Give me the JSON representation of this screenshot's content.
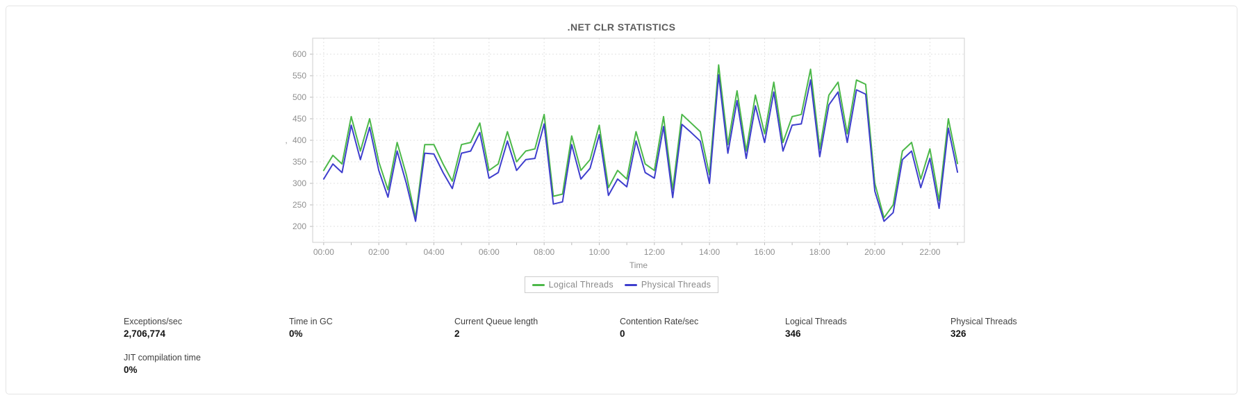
{
  "chart_data": {
    "type": "line",
    "title": ".NET CLR STATISTICS",
    "xlabel": "Time",
    "ylabel": ",",
    "grid": true,
    "legend_position": "bottom",
    "ylim": [
      163,
      637
    ],
    "y_ticks": [
      600,
      550,
      500,
      450,
      400,
      350,
      300,
      250,
      200
    ],
    "x_tick_labels": [
      "00:00",
      "02:00",
      "04:00",
      "06:00",
      "08:00",
      "10:00",
      "12:00",
      "14:00",
      "16:00",
      "18:00",
      "20:00",
      "22:00"
    ],
    "x_tick_hours": [
      0,
      2,
      4,
      6,
      8,
      10,
      12,
      14,
      16,
      18,
      20,
      22
    ],
    "x_minor_tick_step_hours": 1,
    "x_domain_hours": [
      -0.4,
      23.25
    ],
    "x_start_time": "00:00",
    "sample_interval_minutes": 20,
    "axis_color": "#cfcfcf",
    "grid_color": "#e2e2e2",
    "series": [
      {
        "name": "Logical Threads",
        "color": "#4cb849",
        "values": [
          330,
          365,
          345,
          455,
          375,
          450,
          350,
          285,
          395,
          320,
          220,
          390,
          390,
          345,
          305,
          390,
          395,
          440,
          330,
          345,
          420,
          350,
          375,
          380,
          460,
          270,
          275,
          410,
          330,
          355,
          435,
          290,
          330,
          310,
          420,
          345,
          330,
          455,
          285,
          460,
          440,
          420,
          320,
          575,
          390,
          515,
          375,
          505,
          415,
          535,
          395,
          455,
          460,
          565,
          380,
          505,
          535,
          415,
          540,
          530,
          300,
          220,
          250,
          375,
          395,
          310,
          380,
          260,
          450,
          346
        ]
      },
      {
        "name": "Physical Threads",
        "color": "#3e3ecd",
        "values": [
          310,
          345,
          325,
          435,
          355,
          430,
          330,
          268,
          375,
          300,
          212,
          370,
          368,
          325,
          288,
          370,
          375,
          418,
          312,
          325,
          398,
          330,
          355,
          358,
          438,
          252,
          257,
          390,
          310,
          335,
          413,
          272,
          310,
          292,
          398,
          325,
          312,
          432,
          267,
          437,
          418,
          398,
          300,
          552,
          370,
          492,
          358,
          480,
          395,
          512,
          375,
          435,
          438,
          540,
          362,
          482,
          512,
          395,
          517,
          507,
          282,
          212,
          232,
          355,
          375,
          290,
          358,
          242,
          428,
          326
        ]
      }
    ]
  },
  "stats": {
    "items": [
      {
        "label": "Exceptions/sec",
        "value": "2,706,774"
      },
      {
        "label": "Time in GC",
        "value": "0%"
      },
      {
        "label": "Current Queue length",
        "value": "2"
      },
      {
        "label": "Contention Rate/sec",
        "value": "0"
      },
      {
        "label": "Logical Threads",
        "value": "346"
      },
      {
        "label": "Physical Threads",
        "value": "326"
      }
    ],
    "row2": [
      {
        "label": "JIT compilation time",
        "value": "0%"
      }
    ]
  }
}
